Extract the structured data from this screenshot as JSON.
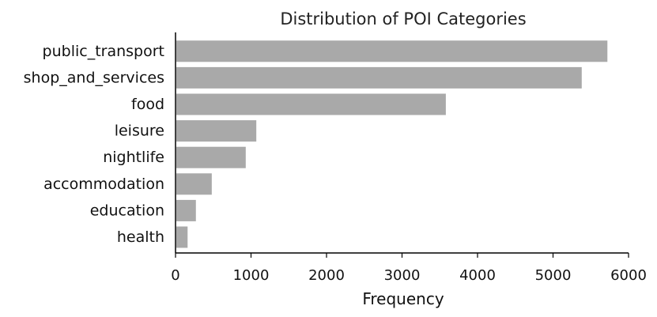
{
  "chart_data": {
    "type": "bar",
    "orientation": "horizontal",
    "title": "Distribution of POI Categories",
    "xlabel": "Frequency",
    "ylabel": "",
    "categories": [
      "public_transport",
      "shop_and_services",
      "food",
      "leisure",
      "nightlife",
      "accommodation",
      "education",
      "health"
    ],
    "values": [
      5720,
      5380,
      3580,
      1070,
      930,
      480,
      270,
      160
    ],
    "xlim": [
      0,
      6000
    ],
    "xticks": [
      0,
      1000,
      2000,
      3000,
      4000,
      5000,
      6000
    ],
    "bar_color": "#a9a9a9",
    "grid": false,
    "legend": "none"
  }
}
